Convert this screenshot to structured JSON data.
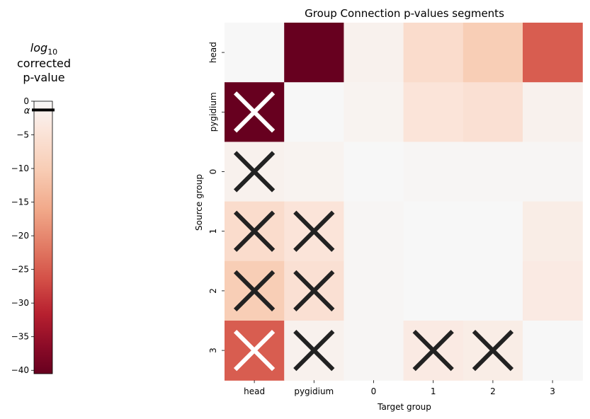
{
  "chart_data": {
    "type": "heatmap",
    "title": "Group Connection p-values segments",
    "xlabel": "Target group",
    "ylabel": "Source group",
    "x_categories": [
      "head",
      "pygidium",
      "0",
      "1",
      "2",
      "3"
    ],
    "y_categories": [
      "head",
      "pygidium",
      "0",
      "1",
      "2",
      "3"
    ],
    "values": [
      [
        0,
        -40.5,
        -1.5,
        -6.5,
        -10,
        -25
      ],
      [
        -40.5,
        0,
        -1.0,
        -4.5,
        -5.5,
        -1.5
      ],
      [
        -1.5,
        -1.0,
        0,
        -0.5,
        -0.5,
        -0.5
      ],
      [
        -6.5,
        -4.5,
        -0.5,
        0,
        0,
        -2.5
      ],
      [
        -10,
        -5.5,
        -0.5,
        0,
        0,
        -3
      ],
      [
        -25,
        -1.5,
        -0.5,
        -3,
        -2.5,
        0
      ]
    ],
    "crosses": [
      {
        "row": 1,
        "col": 0,
        "color": "white"
      },
      {
        "row": 2,
        "col": 0,
        "color": "black"
      },
      {
        "row": 3,
        "col": 0,
        "color": "black"
      },
      {
        "row": 3,
        "col": 1,
        "color": "black"
      },
      {
        "row": 4,
        "col": 0,
        "color": "black"
      },
      {
        "row": 4,
        "col": 1,
        "color": "black"
      },
      {
        "row": 5,
        "col": 0,
        "color": "white"
      },
      {
        "row": 5,
        "col": 1,
        "color": "black"
      },
      {
        "row": 5,
        "col": 3,
        "color": "black"
      },
      {
        "row": 5,
        "col": 4,
        "color": "black"
      }
    ],
    "colorbar": {
      "title_line1": "log",
      "title_sub": "10",
      "title_line2": "corrected",
      "title_line3": "p-value",
      "range": [
        -40.5,
        0
      ],
      "ticks": [
        "0",
        "−5",
        "−10",
        "−15",
        "−20",
        "−25",
        "−30",
        "−35",
        "−40"
      ],
      "tick_values": [
        0,
        -5,
        -10,
        -15,
        -20,
        -25,
        -30,
        -35,
        -40
      ],
      "alpha_label": "α",
      "alpha_value": -1.3,
      "colormap": "RdBu (red half)"
    }
  }
}
